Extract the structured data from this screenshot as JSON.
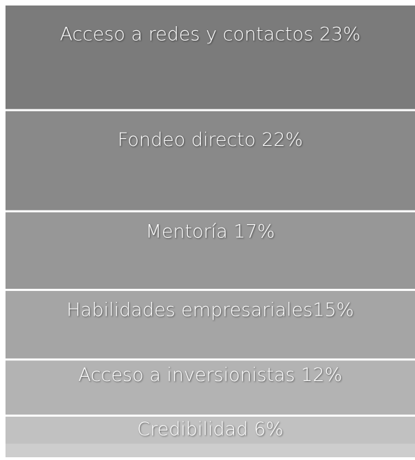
{
  "chart_data": {
    "type": "stacked-column",
    "categories": [
      "Acceso a redes y contactos 23%",
      "Fondeo directo 22%",
      "Mentoría 17%",
      "Habilidades empresariales15%",
      "Acceso a inversionistas 12%",
      "Credibilidad 6%"
    ],
    "values": [
      23,
      22,
      17,
      15,
      12,
      6
    ],
    "colors": [
      "#7b7b7b",
      "#898989",
      "#979797",
      "#a5a5a5",
      "#b3b3b3",
      "#c1c1c1"
    ]
  }
}
